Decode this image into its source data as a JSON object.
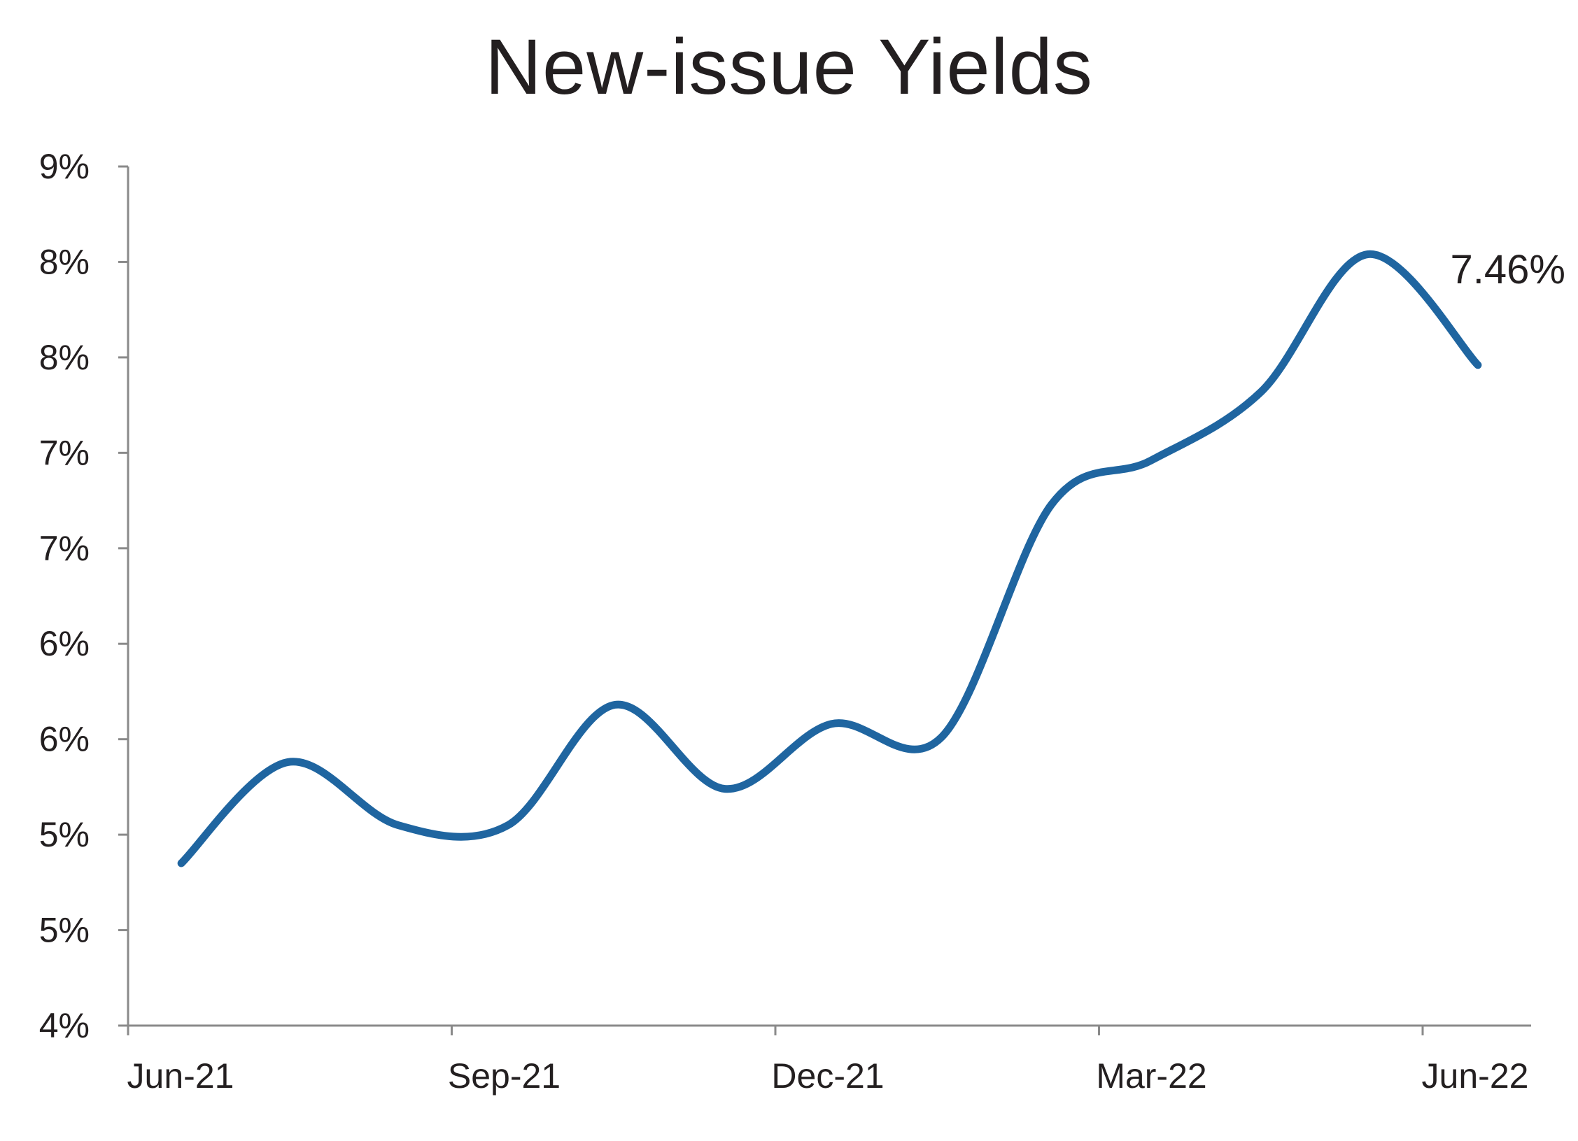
{
  "chart_data": {
    "type": "line",
    "title": "New-issue Yields",
    "xlabel": "",
    "ylabel": "",
    "x_tick_labels": [
      "Jun-21",
      "Sep-21",
      "Dec-21",
      "Mar-22",
      "Jun-22"
    ],
    "y_tick_labels": [
      "4%",
      "5%",
      "5%",
      "6%",
      "6%",
      "7%",
      "7%",
      "8%",
      "8%",
      "9%"
    ],
    "ylim": [
      4.0,
      8.5
    ],
    "y_tick_values": [
      4.0,
      4.5,
      5.0,
      5.5,
      6.0,
      6.5,
      7.0,
      7.5,
      8.0,
      8.5
    ],
    "xlim": [
      "2021-05-31",
      "2022-06-30"
    ],
    "grid": false,
    "legend": "none",
    "series": [
      {
        "color": "#1f65a0",
        "points": [
          {
            "x": "2021-06-15",
            "y": 4.85
          },
          {
            "x": "2021-07-15",
            "y": 5.38
          },
          {
            "x": "2021-08-15",
            "y": 5.05
          },
          {
            "x": "2021-09-15",
            "y": 5.05
          },
          {
            "x": "2021-10-15",
            "y": 5.68
          },
          {
            "x": "2021-11-15",
            "y": 5.24
          },
          {
            "x": "2021-12-15",
            "y": 5.58
          },
          {
            "x": "2022-01-15",
            "y": 5.51
          },
          {
            "x": "2022-02-15",
            "y": 6.73
          },
          {
            "x": "2022-03-15",
            "y": 6.96
          },
          {
            "x": "2022-04-15",
            "y": 7.32
          },
          {
            "x": "2022-05-15",
            "y": 8.04
          },
          {
            "x": "2022-06-15",
            "y": 7.46
          }
        ]
      }
    ],
    "annotations": [
      {
        "text": "7.46%",
        "x": "2022-06-15",
        "y": 7.46
      }
    ]
  }
}
